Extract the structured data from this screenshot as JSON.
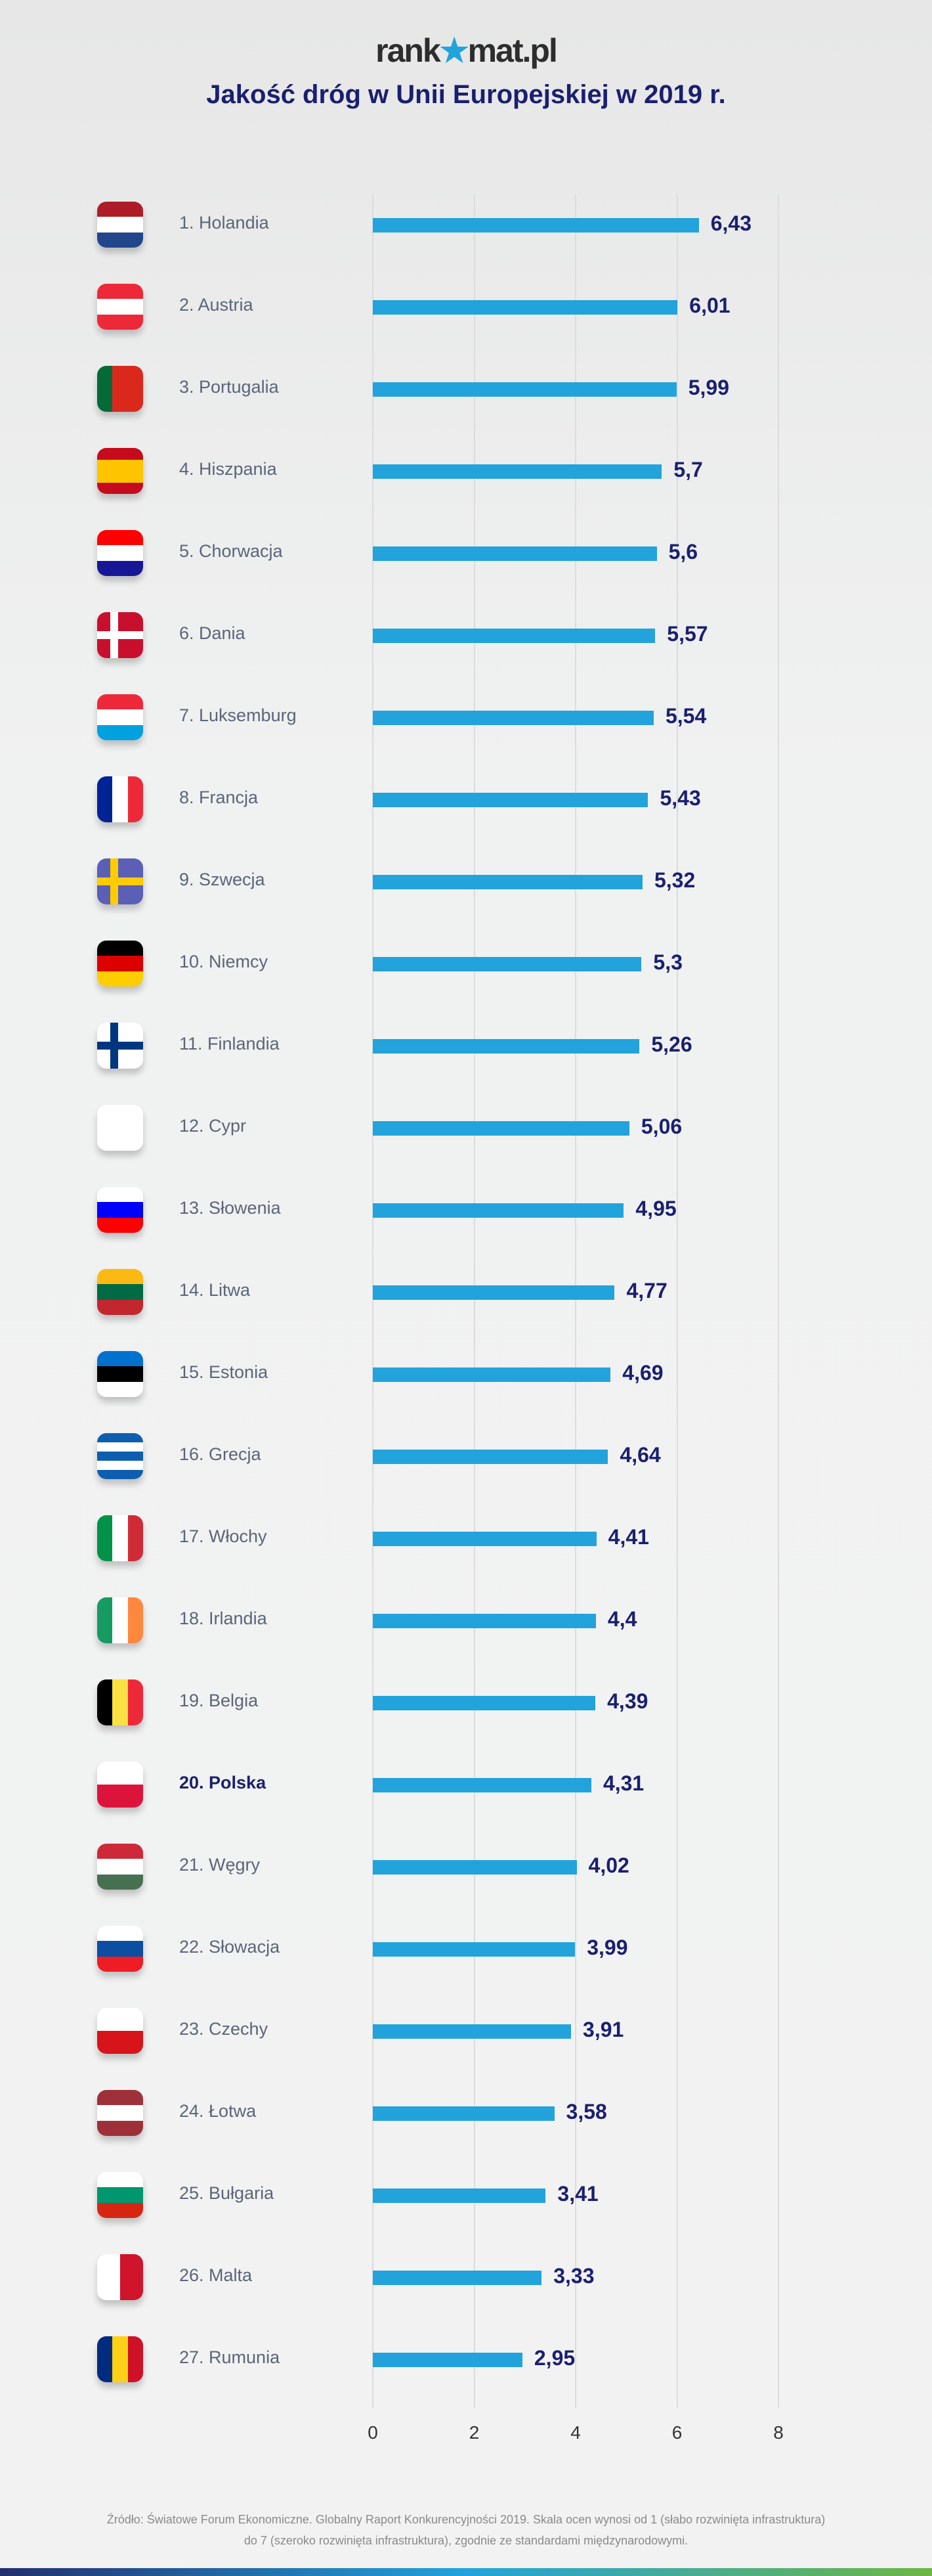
{
  "logo": {
    "text_a": "rank",
    "text_b": "mat.pl"
  },
  "chart_data": {
    "type": "bar",
    "title": "Jakość dróg w Unii Europejskiej w 2019 r.",
    "xlim": [
      0,
      8
    ],
    "xticks": [
      "0",
      "2",
      "4",
      "6",
      "8"
    ],
    "highlight": "20. Polska",
    "categories": [
      "1. Holandia",
      "2. Austria",
      "3. Portugalia",
      "4. Hiszpania",
      "5. Chorwacja",
      "6. Dania",
      "7. Luksemburg",
      "8. Francja",
      "9. Szwecja",
      "10. Niemcy",
      "11. Finlandia",
      "12. Cypr",
      "13. Słowenia",
      "14. Litwa",
      "15. Estonia",
      "16. Grecja",
      "17. Włochy",
      "18. Irlandia",
      "19. Belgia",
      "20. Polska",
      "21. Węgry",
      "22. Słowacja",
      "23. Czechy",
      "24. Łotwa",
      "25. Bułgaria",
      "26. Malta",
      "27. Rumunia"
    ],
    "values": [
      6.43,
      6.01,
      5.99,
      5.7,
      5.6,
      5.57,
      5.54,
      5.43,
      5.32,
      5.3,
      5.26,
      5.06,
      4.95,
      4.77,
      4.69,
      4.64,
      4.41,
      4.4,
      4.39,
      4.31,
      4.02,
      3.99,
      3.91,
      3.58,
      3.41,
      3.33,
      2.95
    ],
    "value_labels": [
      "6,43",
      "6,01",
      "5,99",
      "5,7",
      "5,6",
      "5,57",
      "5,54",
      "5,43",
      "5,32",
      "5,3",
      "5,26",
      "5,06",
      "4,95",
      "4,77",
      "4,69",
      "4,64",
      "4,41",
      "4,4",
      "4,39",
      "4,31",
      "4,02",
      "3,99",
      "3,91",
      "3,58",
      "3,41",
      "3,33",
      "2,95"
    ],
    "bar_color": "#22a3dc"
  },
  "flags": [
    {
      "o": "h",
      "c": [
        "#ae1c28",
        "#ffffff",
        "#21468b"
      ]
    },
    {
      "o": "h",
      "c": [
        "#ed2939",
        "#ffffff",
        "#ed2939"
      ]
    },
    {
      "o": "v",
      "c": [
        "#046a38",
        "#da291c",
        "#da291c"
      ]
    },
    {
      "o": "h",
      "c": [
        "#c60b1e",
        "#ffc400",
        "#ffc400",
        "#c60b1e"
      ]
    },
    {
      "o": "h",
      "c": [
        "#ff0000",
        "#ffffff",
        "#171796"
      ]
    },
    {
      "o": "h",
      "c": [
        "#c8102e"
      ],
      "cross": "#ffffff"
    },
    {
      "o": "h",
      "c": [
        "#ed2939",
        "#ffffff",
        "#00a1de"
      ]
    },
    {
      "o": "v",
      "c": [
        "#002395",
        "#ffffff",
        "#ed2939"
      ]
    },
    {
      "o": "h",
      "c": [
        "#5b5fb5"
      ],
      "cross": "#fecc00"
    },
    {
      "o": "h",
      "c": [
        "#000000",
        "#dd0000",
        "#ffce00"
      ]
    },
    {
      "o": "h",
      "c": [
        "#ffffff"
      ],
      "cross": "#003580"
    },
    {
      "o": "h",
      "c": [
        "#ffffff"
      ]
    },
    {
      "o": "h",
      "c": [
        "#ffffff",
        "#0000ff",
        "#ff0000"
      ]
    },
    {
      "o": "h",
      "c": [
        "#fdb913",
        "#006a44",
        "#c1272d"
      ]
    },
    {
      "o": "h",
      "c": [
        "#0072ce",
        "#000000",
        "#ffffff"
      ]
    },
    {
      "o": "h",
      "c": [
        "#0d5eaf",
        "#ffffff",
        "#0d5eaf",
        "#ffffff",
        "#0d5eaf"
      ]
    },
    {
      "o": "v",
      "c": [
        "#009246",
        "#ffffff",
        "#ce2b37"
      ]
    },
    {
      "o": "v",
      "c": [
        "#169b62",
        "#ffffff",
        "#ff883e"
      ]
    },
    {
      "o": "v",
      "c": [
        "#000000",
        "#fae042",
        "#ed2939"
      ]
    },
    {
      "o": "h",
      "c": [
        "#ffffff",
        "#dc143c"
      ]
    },
    {
      "o": "h",
      "c": [
        "#ce2939",
        "#ffffff",
        "#477050"
      ]
    },
    {
      "o": "h",
      "c": [
        "#ffffff",
        "#0b4ea2",
        "#ee1c25"
      ]
    },
    {
      "o": "h",
      "c": [
        "#ffffff",
        "#d7141a"
      ]
    },
    {
      "o": "h",
      "c": [
        "#9e3039",
        "#ffffff",
        "#9e3039"
      ]
    },
    {
      "o": "h",
      "c": [
        "#ffffff",
        "#00966e",
        "#d62612"
      ]
    },
    {
      "o": "v",
      "c": [
        "#ffffff",
        "#cf142b"
      ]
    },
    {
      "o": "v",
      "c": [
        "#002b7f",
        "#fcd116",
        "#ce1126"
      ]
    }
  ],
  "footer": {
    "line1": "Źródło: Światowe Forum Ekonomiczne. Globalny Raport Konkurencyjności 2019. Skala ocen wynosi od 1 (słabo rozwinięta infrastruktura)",
    "line2": "do 7 (szeroko rozwinięta infrastruktura), zgodnie ze standardami międzynarodowymi."
  }
}
